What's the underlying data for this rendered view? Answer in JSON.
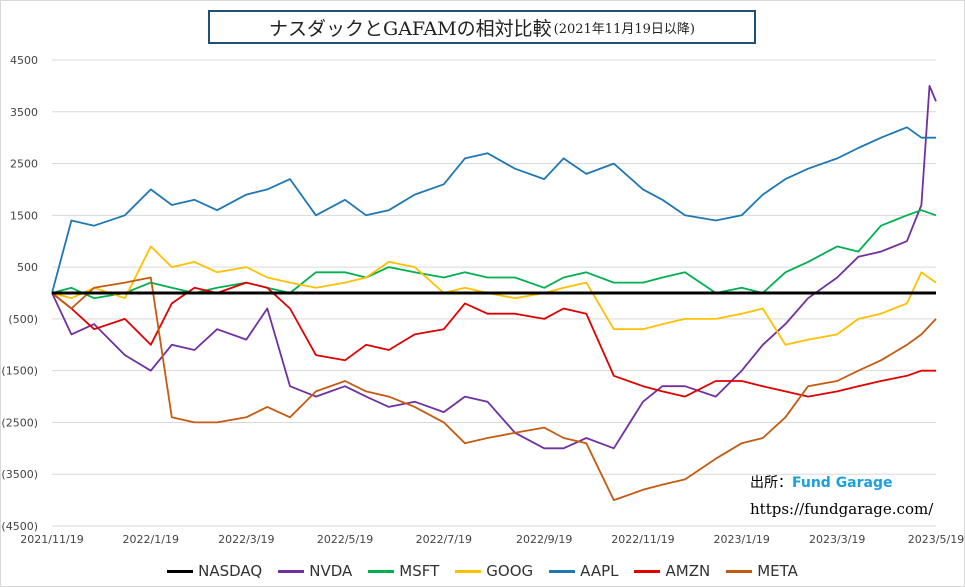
{
  "chart_data": {
    "type": "line",
    "title": "ナスダックとGAFAMの相対比較",
    "subtitle": "(2021年11月19日以降)",
    "xlabel": "",
    "ylabel": "",
    "ylim": [
      -4500,
      4500
    ],
    "yticks": [
      4500,
      3500,
      2500,
      1500,
      500,
      -500,
      -1500,
      -2500,
      -3500,
      -4500
    ],
    "ytick_labels": [
      "4500",
      "3500",
      "2500",
      "1500",
      "500",
      "(500)",
      "(1500)",
      "(2500)",
      "(3500)",
      "(4500)"
    ],
    "xrange": [
      "2021/11/19",
      "2023/5/19"
    ],
    "xtick_labels": [
      "2021/11/19",
      "2022/1/19",
      "2022/3/19",
      "2022/5/19",
      "2022/7/19",
      "2022/9/19",
      "2022/11/19",
      "2023/1/19",
      "2023/3/19",
      "2023/5/19"
    ],
    "grid": "horizontal",
    "legend_position": "bottom",
    "series": [
      {
        "name": "NASDAQ",
        "color": "#000000",
        "x": [
          "2021/11/19",
          "2023/5/19"
        ],
        "values": [
          0,
          0
        ]
      },
      {
        "name": "NVDA",
        "color": "#7030a0",
        "x": [
          "2021/11/19",
          "2021/12/1",
          "2021/12/15",
          "2022/1/3",
          "2022/1/19",
          "2022/2/1",
          "2022/2/15",
          "2022/3/1",
          "2022/3/19",
          "2022/4/1",
          "2022/4/15",
          "2022/5/1",
          "2022/5/19",
          "2022/6/1",
          "2022/6/15",
          "2022/7/1",
          "2022/7/19",
          "2022/8/1",
          "2022/8/15",
          "2022/9/1",
          "2022/9/19",
          "2022/10/1",
          "2022/10/15",
          "2022/11/1",
          "2022/11/19",
          "2022/12/1",
          "2022/12/15",
          "2023/1/3",
          "2023/1/19",
          "2023/2/1",
          "2023/2/15",
          "2023/3/1",
          "2023/3/19",
          "2023/4/1",
          "2023/4/15",
          "2023/5/1",
          "2023/5/10",
          "2023/5/15",
          "2023/5/19"
        ],
        "values": [
          0,
          -800,
          -600,
          -1200,
          -1500,
          -1000,
          -1100,
          -700,
          -900,
          -300,
          -1800,
          -2000,
          -1800,
          -2000,
          -2200,
          -2100,
          -2300,
          -2000,
          -2100,
          -2700,
          -3000,
          -3000,
          -2800,
          -3000,
          -2100,
          -1800,
          -1800,
          -2000,
          -1500,
          -1000,
          -600,
          -100,
          300,
          700,
          800,
          1000,
          1700,
          4000,
          3700
        ]
      },
      {
        "name": "MSFT",
        "color": "#00b050",
        "x": [
          "2021/11/19",
          "2021/12/1",
          "2021/12/15",
          "2022/1/3",
          "2022/1/19",
          "2022/2/1",
          "2022/2/15",
          "2022/3/1",
          "2022/3/19",
          "2022/4/1",
          "2022/4/15",
          "2022/5/1",
          "2022/5/19",
          "2022/6/1",
          "2022/6/15",
          "2022/7/1",
          "2022/7/19",
          "2022/8/1",
          "2022/8/15",
          "2022/9/1",
          "2022/9/19",
          "2022/10/1",
          "2022/10/15",
          "2022/11/1",
          "2022/11/19",
          "2022/12/1",
          "2022/12/15",
          "2023/1/3",
          "2023/1/19",
          "2023/2/1",
          "2023/2/15",
          "2023/3/1",
          "2023/3/19",
          "2023/4/1",
          "2023/4/15",
          "2023/5/1",
          "2023/5/10",
          "2023/5/19"
        ],
        "values": [
          0,
          100,
          -100,
          0,
          200,
          100,
          0,
          100,
          200,
          100,
          0,
          400,
          400,
          300,
          500,
          400,
          300,
          400,
          300,
          300,
          100,
          300,
          400,
          200,
          200,
          300,
          400,
          0,
          100,
          0,
          400,
          600,
          900,
          800,
          1300,
          1500,
          1600,
          1500
        ]
      },
      {
        "name": "GOOG",
        "color": "#ffc000",
        "x": [
          "2021/11/19",
          "2021/12/1",
          "2021/12/15",
          "2022/1/3",
          "2022/1/19",
          "2022/2/1",
          "2022/2/15",
          "2022/3/1",
          "2022/3/19",
          "2022/4/1",
          "2022/4/15",
          "2022/5/1",
          "2022/5/19",
          "2022/6/1",
          "2022/6/15",
          "2022/7/1",
          "2022/7/19",
          "2022/8/1",
          "2022/8/15",
          "2022/9/1",
          "2022/9/19",
          "2022/10/1",
          "2022/10/15",
          "2022/11/1",
          "2022/11/19",
          "2022/12/1",
          "2022/12/15",
          "2023/1/3",
          "2023/1/19",
          "2023/2/1",
          "2023/2/15",
          "2023/3/1",
          "2023/3/19",
          "2023/4/1",
          "2023/4/15",
          "2023/5/1",
          "2023/5/10",
          "2023/5/19"
        ],
        "values": [
          0,
          -100,
          100,
          -100,
          900,
          500,
          600,
          400,
          500,
          300,
          200,
          100,
          200,
          300,
          600,
          500,
          0,
          100,
          0,
          -100,
          0,
          100,
          200,
          -700,
          -700,
          -600,
          -500,
          -500,
          -400,
          -300,
          -1000,
          -900,
          -800,
          -500,
          -400,
          -200,
          400,
          200
        ]
      },
      {
        "name": "AAPL",
        "color": "#1f77b4",
        "x": [
          "2021/11/19",
          "2021/12/1",
          "2021/12/15",
          "2022/1/3",
          "2022/1/19",
          "2022/2/1",
          "2022/2/15",
          "2022/3/1",
          "2022/3/19",
          "2022/4/1",
          "2022/4/15",
          "2022/5/1",
          "2022/5/19",
          "2022/6/1",
          "2022/6/15",
          "2022/7/1",
          "2022/7/19",
          "2022/8/1",
          "2022/8/15",
          "2022/9/1",
          "2022/9/19",
          "2022/10/1",
          "2022/10/15",
          "2022/11/1",
          "2022/11/19",
          "2022/12/1",
          "2022/12/15",
          "2023/1/3",
          "2023/1/19",
          "2023/2/1",
          "2023/2/15",
          "2023/3/1",
          "2023/3/19",
          "2023/4/1",
          "2023/4/15",
          "2023/5/1",
          "2023/5/10",
          "2023/5/19"
        ],
        "values": [
          0,
          1400,
          1300,
          1500,
          2000,
          1700,
          1800,
          1600,
          1900,
          2000,
          2200,
          1500,
          1800,
          1500,
          1600,
          1900,
          2100,
          2600,
          2700,
          2400,
          2200,
          2600,
          2300,
          2500,
          2000,
          1800,
          1500,
          1400,
          1500,
          1900,
          2200,
          2400,
          2600,
          2800,
          3000,
          3200,
          3000,
          3000
        ]
      },
      {
        "name": "AMZN",
        "color": "#e00000",
        "x": [
          "2021/11/19",
          "2021/12/1",
          "2021/12/15",
          "2022/1/3",
          "2022/1/19",
          "2022/2/1",
          "2022/2/15",
          "2022/3/1",
          "2022/3/19",
          "2022/4/1",
          "2022/4/15",
          "2022/5/1",
          "2022/5/19",
          "2022/6/1",
          "2022/6/15",
          "2022/7/1",
          "2022/7/19",
          "2022/8/1",
          "2022/8/15",
          "2022/9/1",
          "2022/9/19",
          "2022/10/1",
          "2022/10/15",
          "2022/11/1",
          "2022/11/19",
          "2022/12/1",
          "2022/12/15",
          "2023/1/3",
          "2023/1/19",
          "2023/2/1",
          "2023/2/15",
          "2023/3/1",
          "2023/3/19",
          "2023/4/1",
          "2023/4/15",
          "2023/5/1",
          "2023/5/10",
          "2023/5/19"
        ],
        "values": [
          0,
          -300,
          -700,
          -500,
          -1000,
          -200,
          100,
          0,
          200,
          100,
          -300,
          -1200,
          -1300,
          -1000,
          -1100,
          -800,
          -700,
          -200,
          -400,
          -400,
          -500,
          -300,
          -400,
          -1600,
          -1800,
          -1900,
          -2000,
          -1700,
          -1700,
          -1800,
          -1900,
          -2000,
          -1900,
          -1800,
          -1700,
          -1600,
          -1500,
          -1500
        ]
      },
      {
        "name": "META",
        "color": "#c55a11",
        "x": [
          "2021/11/19",
          "2021/12/1",
          "2021/12/15",
          "2022/1/3",
          "2022/1/19",
          "2022/2/1",
          "2022/2/15",
          "2022/3/1",
          "2022/3/19",
          "2022/4/1",
          "2022/4/15",
          "2022/5/1",
          "2022/5/19",
          "2022/6/1",
          "2022/6/15",
          "2022/7/1",
          "2022/7/19",
          "2022/8/1",
          "2022/8/15",
          "2022/9/1",
          "2022/9/19",
          "2022/10/1",
          "2022/10/15",
          "2022/11/1",
          "2022/11/19",
          "2022/12/1",
          "2022/12/15",
          "2023/1/3",
          "2023/1/19",
          "2023/2/1",
          "2023/2/15",
          "2023/3/1",
          "2023/3/19",
          "2023/4/1",
          "2023/4/15",
          "2023/5/1",
          "2023/5/10",
          "2023/5/19"
        ],
        "values": [
          0,
          -300,
          100,
          200,
          300,
          -2400,
          -2500,
          -2500,
          -2400,
          -2200,
          -2400,
          -1900,
          -1700,
          -1900,
          -2000,
          -2200,
          -2500,
          -2900,
          -2800,
          -2700,
          -2600,
          -2800,
          -2900,
          -4000,
          -3800,
          -3700,
          -3600,
          -3200,
          -2900,
          -2800,
          -2400,
          -1800,
          -1700,
          -1500,
          -1300,
          -1000,
          -800,
          -500
        ]
      }
    ]
  },
  "credit": {
    "label": "出所：",
    "brand": "Fund Garage",
    "url": "https://fundgarage.com/"
  },
  "legend": {
    "entries": [
      "NASDAQ",
      "NVDA",
      "MSFT",
      "GOOG",
      "AAPL",
      "AMZN",
      "META"
    ]
  }
}
